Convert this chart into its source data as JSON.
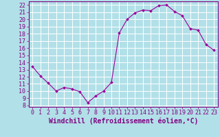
{
  "x": [
    0,
    1,
    2,
    3,
    4,
    5,
    6,
    7,
    8,
    9,
    10,
    11,
    12,
    13,
    14,
    15,
    16,
    17,
    18,
    19,
    20,
    21,
    22,
    23
  ],
  "y": [
    13.4,
    12.1,
    11.1,
    10.0,
    10.5,
    10.3,
    9.9,
    8.4,
    9.3,
    10.0,
    11.2,
    18.1,
    20.0,
    20.9,
    21.3,
    21.2,
    21.9,
    22.0,
    21.1,
    20.5,
    18.7,
    18.5,
    16.5,
    15.7
  ],
  "line_color": "#990099",
  "marker": "D",
  "marker_size": 2.0,
  "bg_color": "#b2e0e8",
  "grid_color": "#ffffff",
  "xlabel": "Windchill (Refroidissement éolien,°C)",
  "xlabel_color": "#800080",
  "xlabel_fontsize": 7,
  "tick_color": "#800080",
  "tick_fontsize": 6,
  "ylim": [
    7.8,
    22.5
  ],
  "xlim": [
    -0.5,
    23.5
  ],
  "yticks": [
    8,
    9,
    10,
    11,
    12,
    13,
    14,
    15,
    16,
    17,
    18,
    19,
    20,
    21,
    22
  ],
  "xticks": [
    0,
    1,
    2,
    3,
    4,
    5,
    6,
    7,
    8,
    9,
    10,
    11,
    12,
    13,
    14,
    15,
    16,
    17,
    18,
    19,
    20,
    21,
    22,
    23
  ]
}
